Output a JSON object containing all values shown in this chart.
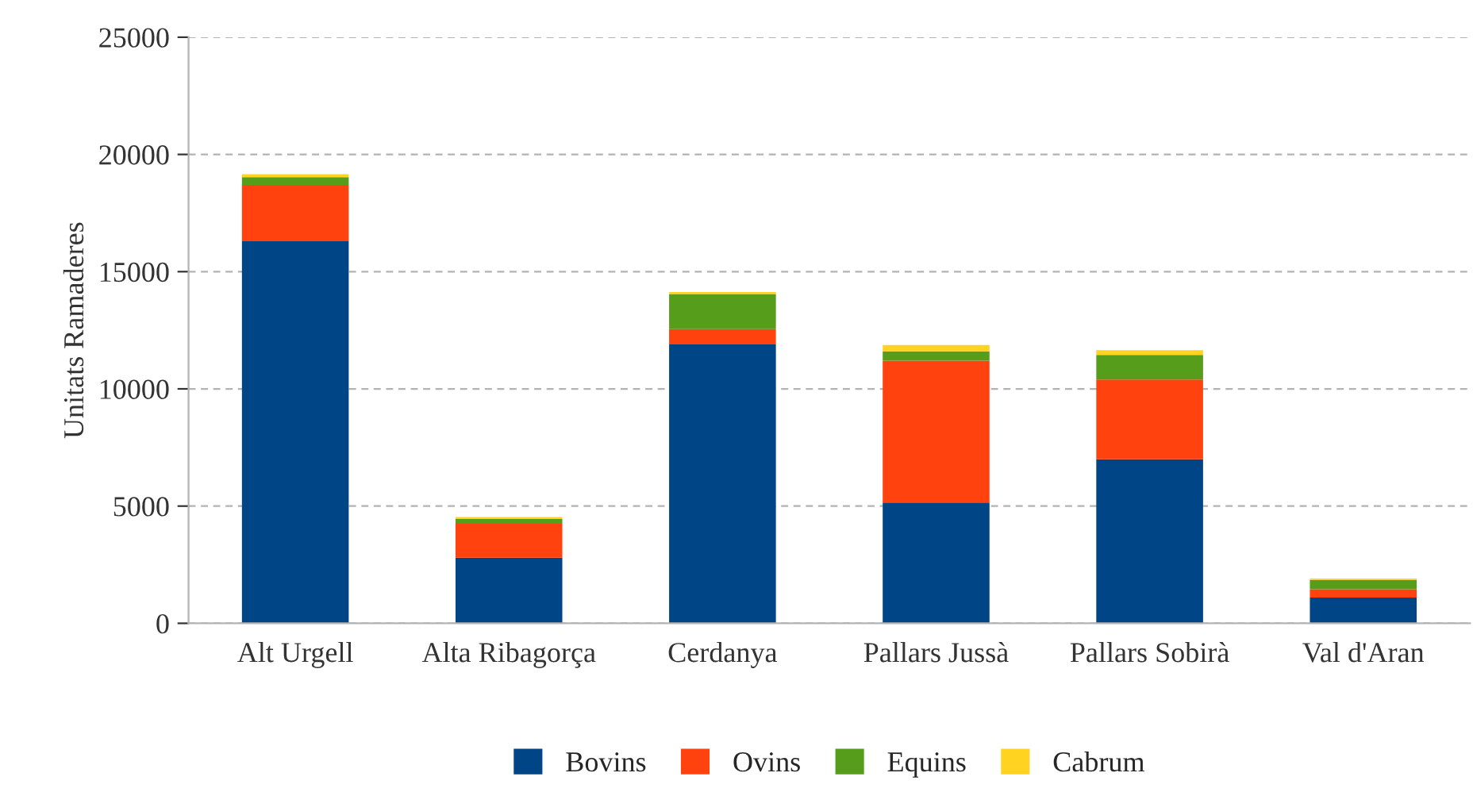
{
  "chart_data": {
    "type": "bar",
    "stacked": true,
    "ylabel": "Unitats Ramaderes",
    "categories": [
      "Alt Urgell",
      "Alta Ribagorça",
      "Cerdanya",
      "Pallars Jussà",
      "Pallars Sobirà",
      "Val d'Aran"
    ],
    "series": [
      {
        "name": "Bovins",
        "color": "#004586",
        "values": [
          16300,
          2800,
          11900,
          5150,
          7000,
          1100
        ]
      },
      {
        "name": "Ovins",
        "color": "#ff420e",
        "values": [
          2400,
          1450,
          650,
          6050,
          3400,
          350
        ]
      },
      {
        "name": "Equins",
        "color": "#579d1c",
        "values": [
          330,
          200,
          1500,
          400,
          1050,
          400
        ]
      },
      {
        "name": "Cabrum",
        "color": "#ffd320",
        "values": [
          130,
          80,
          80,
          270,
          200,
          60
        ]
      }
    ],
    "ylim": [
      0,
      25000
    ],
    "yticks": [
      0,
      5000,
      10000,
      15000,
      20000,
      25000
    ],
    "grid": "y",
    "legend": "bottom"
  }
}
